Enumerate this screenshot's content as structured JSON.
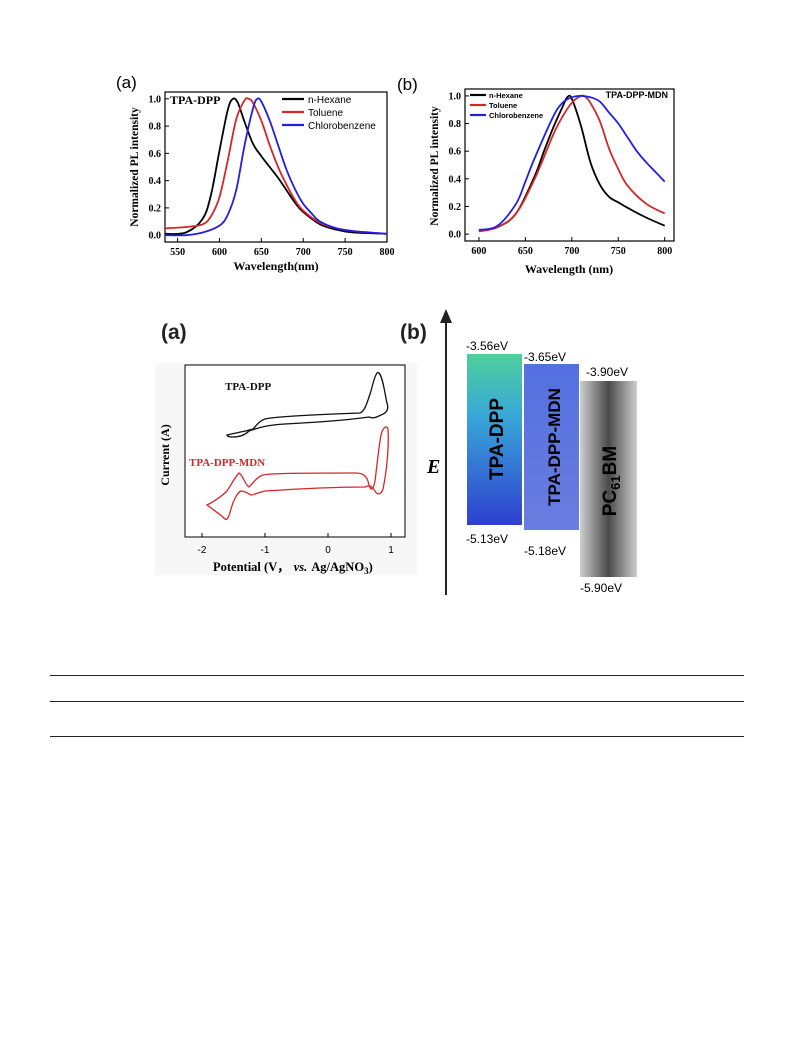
{
  "figure_top": {
    "chart_data": [
      {
        "type": "line",
        "panel_label": "(a)",
        "title": "TPA-DPP",
        "xlabel": "Wavelength(nm)",
        "ylabel": "Normalized PL intensity",
        "xlim": [
          535,
          800
        ],
        "ylim": [
          -0.05,
          1.05
        ],
        "xticks": [
          550,
          600,
          650,
          700,
          750,
          800
        ],
        "yticks": [
          0.0,
          0.2,
          0.4,
          0.6,
          0.8,
          1.0
        ],
        "legend_position": "top-right",
        "series": [
          {
            "name": "n-Hexane",
            "color": "#000000",
            "x": [
              535,
              560,
              580,
              590,
              600,
              610,
              616,
              622,
              630,
              640,
              650,
              660,
              670,
              680,
              690,
              700,
              720,
              740,
              760,
              800
            ],
            "y": [
              0.01,
              0.02,
              0.12,
              0.3,
              0.62,
              0.92,
              1.0,
              0.97,
              0.83,
              0.67,
              0.58,
              0.5,
              0.42,
              0.33,
              0.24,
              0.17,
              0.08,
              0.04,
              0.02,
              0.01
            ]
          },
          {
            "name": "Toluene",
            "color": "#d62728",
            "x": [
              535,
              560,
              580,
              590,
              600,
              610,
              620,
              630,
              635,
              640,
              650,
              660,
              670,
              680,
              690,
              700,
              720,
              740,
              760,
              800
            ],
            "y": [
              0.05,
              0.06,
              0.08,
              0.14,
              0.28,
              0.55,
              0.85,
              0.99,
              1.0,
              0.97,
              0.84,
              0.66,
              0.5,
              0.37,
              0.26,
              0.18,
              0.09,
              0.05,
              0.03,
              0.01
            ]
          },
          {
            "name": "Chlorobenzene",
            "color": "#1f1fe6",
            "x": [
              535,
              560,
              580,
              600,
              610,
              620,
              630,
              640,
              645,
              650,
              660,
              670,
              680,
              690,
              700,
              710,
              720,
              740,
              760,
              800
            ],
            "y": [
              0.0,
              0.0,
              0.02,
              0.07,
              0.15,
              0.33,
              0.66,
              0.93,
              1.0,
              0.98,
              0.84,
              0.66,
              0.48,
              0.34,
              0.23,
              0.16,
              0.1,
              0.05,
              0.03,
              0.01
            ]
          }
        ]
      },
      {
        "type": "line",
        "panel_label": "(b)",
        "title": "TPA-DPP-MDN",
        "xlabel": "Wavelength (nm)",
        "ylabel": "Normalized PL intensity",
        "xlim": [
          585,
          810
        ],
        "ylim": [
          -0.05,
          1.05
        ],
        "xticks": [
          600,
          650,
          700,
          750,
          800
        ],
        "yticks": [
          0.0,
          0.2,
          0.4,
          0.6,
          0.8,
          1.0
        ],
        "legend_position": "top-left",
        "series": [
          {
            "name": "n-Hexane",
            "color": "#000000",
            "x": [
              600,
              620,
              640,
              660,
              670,
              680,
              690,
              695,
              700,
              710,
              720,
              730,
              740,
              750,
              760,
              780,
              800
            ],
            "y": [
              0.02,
              0.05,
              0.15,
              0.42,
              0.6,
              0.77,
              0.92,
              0.99,
              0.98,
              0.78,
              0.52,
              0.36,
              0.27,
              0.23,
              0.19,
              0.12,
              0.06
            ]
          },
          {
            "name": "Toluene",
            "color": "#d62728",
            "x": [
              600,
              620,
              640,
              660,
              680,
              690,
              700,
              710,
              715,
              720,
              730,
              740,
              750,
              760,
              780,
              800
            ],
            "y": [
              0.02,
              0.05,
              0.15,
              0.4,
              0.72,
              0.85,
              0.95,
              1.0,
              0.99,
              0.95,
              0.82,
              0.62,
              0.47,
              0.35,
              0.22,
              0.15
            ]
          },
          {
            "name": "Chlorobenzene",
            "color": "#1f1fe6",
            "x": [
              600,
              620,
              640,
              650,
              660,
              680,
              690,
              700,
              710,
              720,
              730,
              740,
              750,
              760,
              770,
              780,
              790,
              800
            ],
            "y": [
              0.03,
              0.06,
              0.22,
              0.38,
              0.55,
              0.85,
              0.95,
              0.99,
              1.0,
              0.99,
              0.96,
              0.88,
              0.8,
              0.7,
              0.6,
              0.52,
              0.45,
              0.38
            ]
          }
        ]
      }
    ]
  },
  "figure_bottom": {
    "cv": {
      "panel_label": "(a)",
      "xlabel_prefix": "Potential (V，",
      "xlabel_vs": "vs.",
      "xlabel_ref": "Ag/AgNO",
      "xlabel_sub": "3",
      "xlabel_suffix": ")",
      "ylabel": "Current (A)",
      "xticks": [
        -2,
        -1,
        0,
        1
      ],
      "curve_labels": [
        {
          "text": "TPA-DPP",
          "color": "#000000"
        },
        {
          "text": "TPA-DPP-MDN",
          "color": "#d62728"
        }
      ]
    },
    "energy": {
      "panel_label": "(b)",
      "axis_label": "E",
      "materials": [
        {
          "name": "TPA-DPP",
          "lumo": "-3.56eV",
          "homo": "-5.13eV"
        },
        {
          "name": "TPA-DPP-MDN",
          "lumo": "-3.65eV",
          "homo": "-5.18eV"
        },
        {
          "name": "PC",
          "name_sub": "61",
          "name_suffix": "BM",
          "lumo": "-3.90eV",
          "homo": "-5.90eV"
        }
      ]
    }
  }
}
